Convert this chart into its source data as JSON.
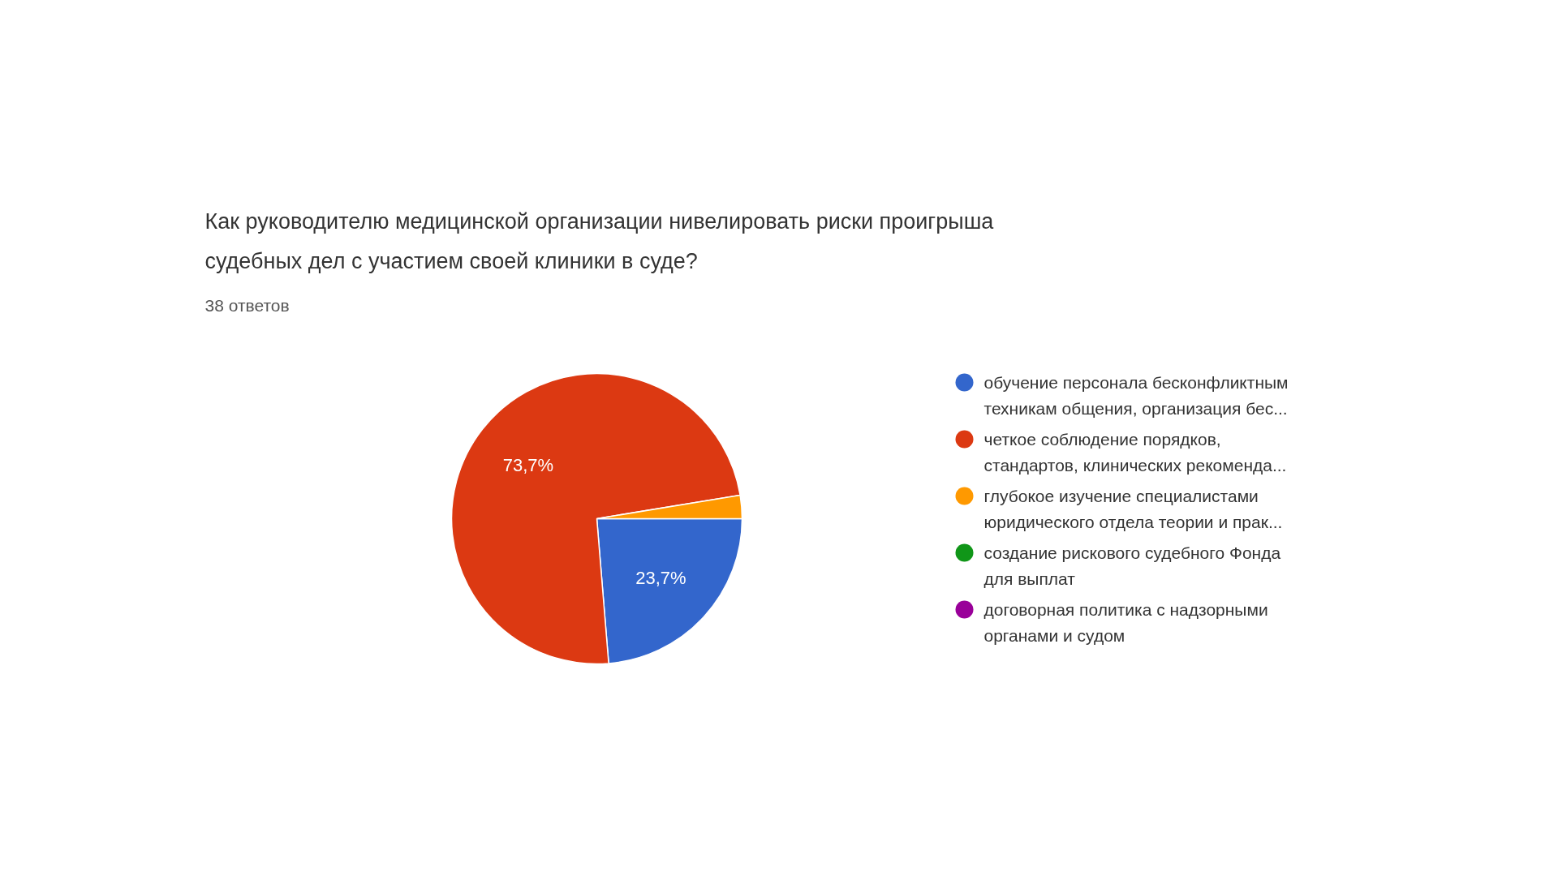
{
  "chart_data": {
    "type": "pie",
    "title": "Как руководителю медицинской организации нивелировать риски проигрыша судебных дел с участием своей клиники в суде?",
    "subtitle": "38 ответов",
    "categories": [
      "обучение персонала бесконфликтным техникам общения, организация бес...",
      "четкое соблюдение порядков, стандартов, клинических рекоменда...",
      "глубокое изучение специалистами юридического отдела теории и прак...",
      "создание рискового судебного Фонда для выплат",
      "договорная политика с надзорными органами и судом"
    ],
    "values": [
      23.7,
      73.7,
      2.6,
      0,
      0
    ],
    "colors": [
      "#3366cc",
      "#dc3912",
      "#ff9900",
      "#109618",
      "#990099"
    ],
    "value_labels": [
      "23,7%",
      "73,7%",
      null,
      null,
      null
    ],
    "legend": "right"
  }
}
